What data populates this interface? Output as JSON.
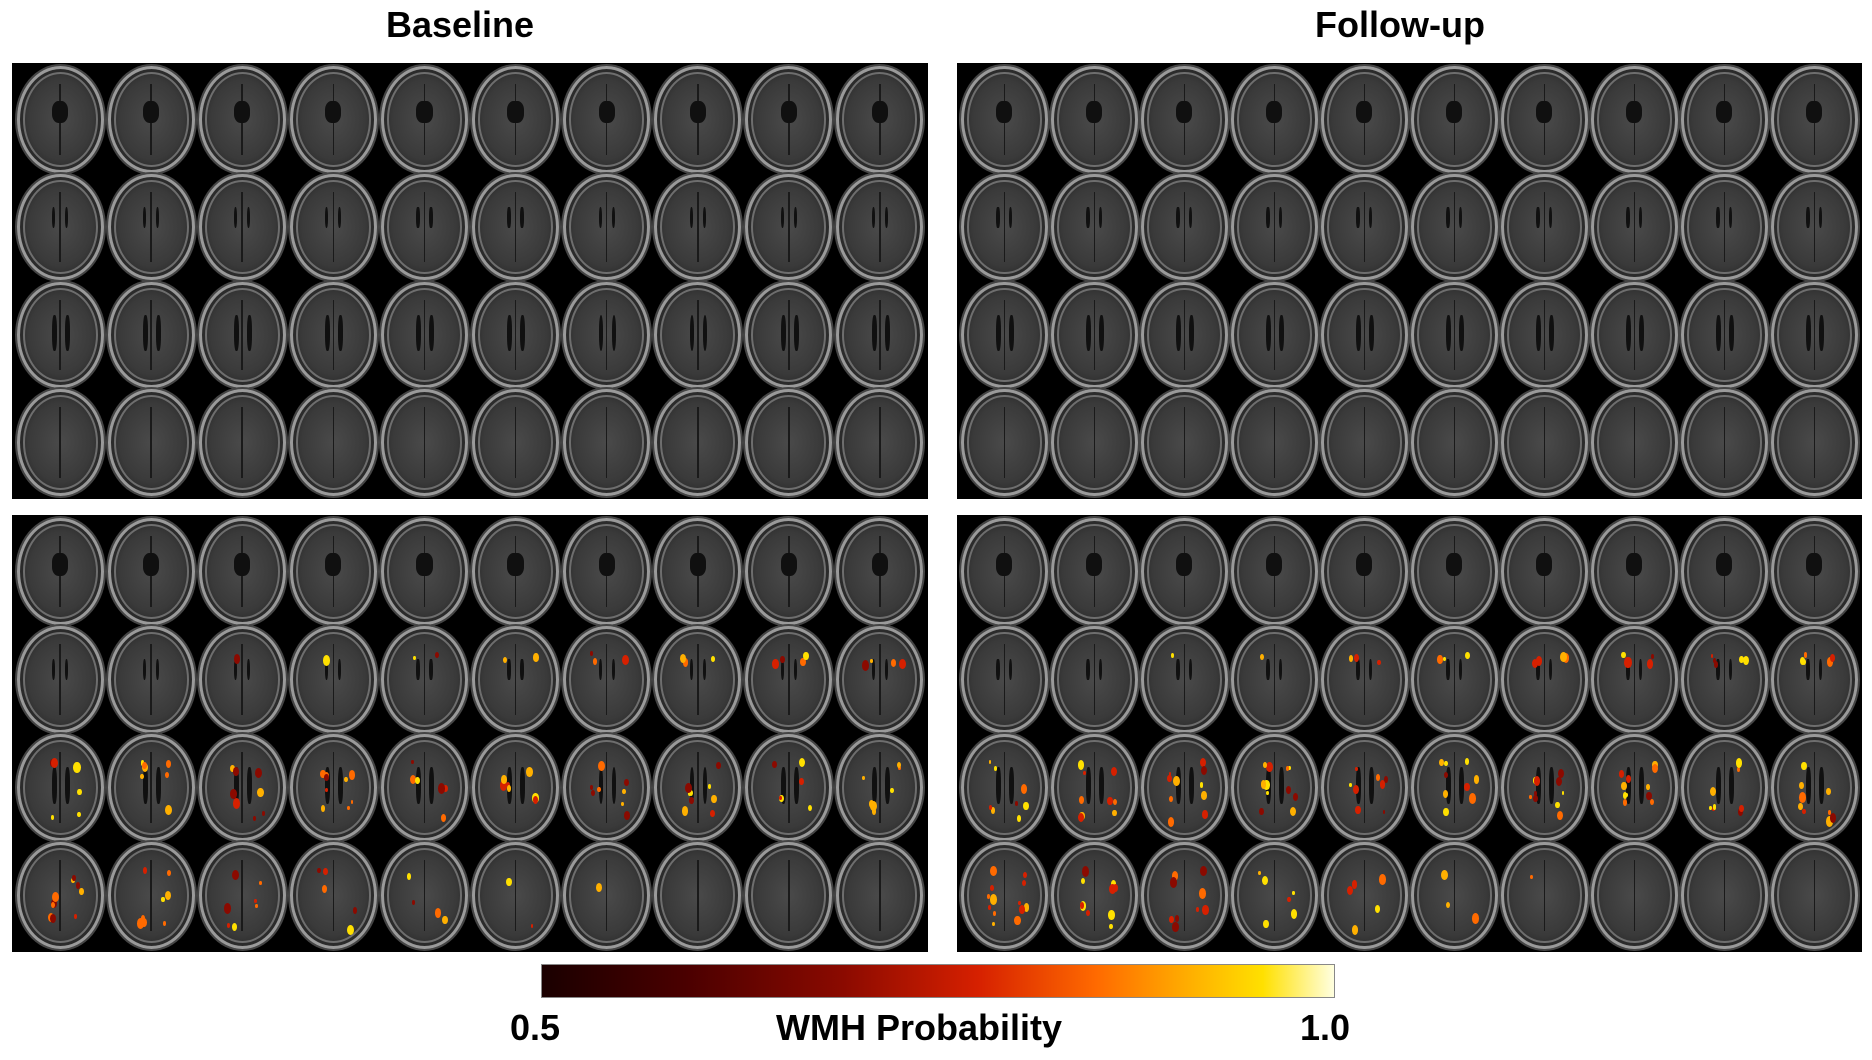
{
  "titles": {
    "baseline": "Baseline",
    "followup": "Follow-up"
  },
  "colorbar": {
    "min_label": "0.5",
    "max_label": "1.0",
    "label": "WMH Probability",
    "colors": [
      "#1a0000",
      "#8b0a00",
      "#d62000",
      "#ff6a00",
      "#ffe000",
      "#ffffe0"
    ]
  },
  "panels": [
    {
      "name": "baseline-flair",
      "overlay": false,
      "intensity": 1.0
    },
    {
      "name": "followup-flair",
      "overlay": false,
      "intensity": 1.0
    },
    {
      "name": "baseline-overlay",
      "overlay": true,
      "intensity": 1.0
    },
    {
      "name": "followup-overlay",
      "overlay": true,
      "intensity": 1.25
    }
  ]
}
